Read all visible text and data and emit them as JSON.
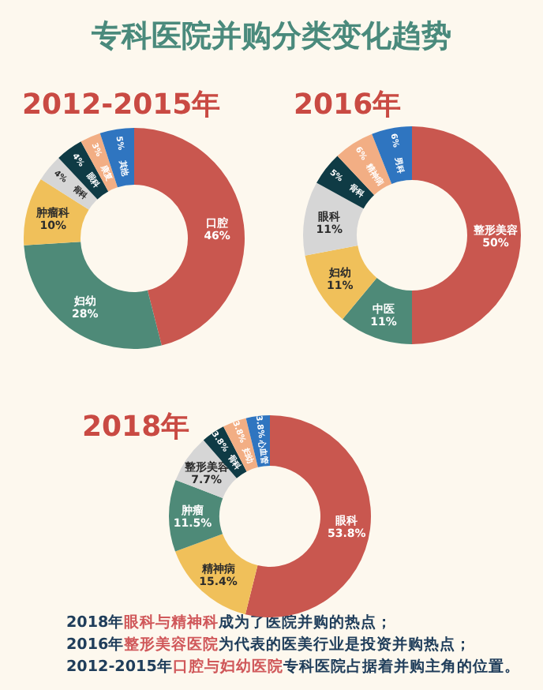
{
  "chart_data": [
    {
      "type": "other",
      "title": "专科医院并购分类变化趋势",
      "annotations": [
        "2018年**眼科与精神科**成为了医院并购的热点；",
        "2016年**整形美容医院**为代表的医美行业是投资并购热点；",
        "2012-2015年**口腔与妇幼医院**专科医院占据着并购主角的位置。"
      ]
    },
    {
      "type": "donut",
      "title": "2012-2015年",
      "categories": [
        "口腔",
        "妇幼",
        "肿瘤科",
        "骨科",
        "眼科",
        "康复",
        "其他"
      ],
      "values": [
        46,
        28,
        10,
        4,
        4,
        3,
        5
      ],
      "value_labels": [
        "46%",
        "28%",
        "10%",
        "4%",
        "4%",
        "3%",
        "5%"
      ],
      "colors": [
        "#c9574f",
        "#4e8a78",
        "#f0c05a",
        "#d6d6d6",
        "#0f3b45",
        "#f2ae84",
        "#2f75c0"
      ]
    },
    {
      "type": "donut",
      "title": "2016年",
      "categories": [
        "整形美容",
        "中医",
        "妇幼",
        "眼科",
        "骨科",
        "精神病",
        "男科"
      ],
      "values": [
        50,
        11,
        11,
        11,
        5,
        6,
        6
      ],
      "value_labels": [
        "50%",
        "11%",
        "11%",
        "11%",
        "5%",
        "6%",
        "6%"
      ],
      "colors": [
        "#c9574f",
        "#4e8a78",
        "#f0c05a",
        "#d6d6d6",
        "#0f3b45",
        "#f2ae84",
        "#2f75c0"
      ]
    },
    {
      "type": "donut",
      "title": "2018年",
      "categories": [
        "眼科",
        "精神病",
        "肿瘤",
        "整形美容",
        "骨科",
        "妇幼",
        "心血管"
      ],
      "values": [
        53.8,
        15.4,
        11.5,
        7.7,
        3.8,
        3.8,
        3.8
      ],
      "value_labels": [
        "53.8%",
        "15.4%",
        "11.5%",
        "7.7%",
        "3.8%",
        "3.8%",
        "3.8%"
      ],
      "colors": [
        "#c9574f",
        "#f0c05a",
        "#4e8a78",
        "#d6d6d6",
        "#0f3b45",
        "#f2ae84",
        "#2f75c0"
      ]
    }
  ]
}
